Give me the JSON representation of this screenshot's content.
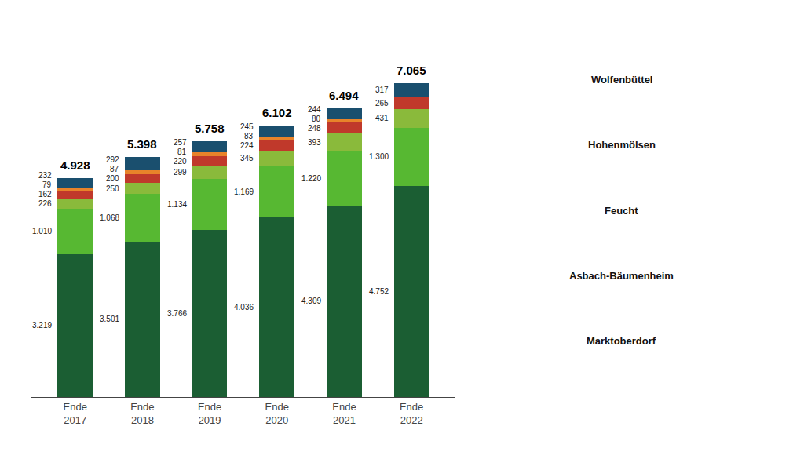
{
  "chart_data": {
    "type": "bar",
    "stacked": true,
    "data_labels": true,
    "grid": false,
    "tick_labels": "x",
    "categories": [
      "Ende\n2017",
      "Ende\n2018",
      "Ende\n2019",
      "Ende\n2020",
      "Ende\n2021",
      "Ende\n2022"
    ],
    "series": [
      {
        "color": "#1b5e33",
        "values": [
          3219,
          3501,
          3766,
          4036,
          4309,
          4752
        ],
        "value_labels": [
          "3.219",
          "3.501",
          "3.766",
          "4.036",
          "4.309",
          "4.752"
        ]
      },
      {
        "color": "#57b832",
        "values": [
          1010,
          1068,
          1134,
          1169,
          1220,
          1300
        ],
        "value_labels": [
          "1.010",
          "1.068",
          "1.134",
          "1.169",
          "1.220",
          "1.300"
        ]
      },
      {
        "color": "#8aba3b",
        "values": [
          226,
          250,
          299,
          345,
          393,
          431
        ],
        "value_labels": [
          "226",
          "250",
          "299",
          "345",
          "393",
          "431"
        ]
      },
      {
        "color": "#c0392b",
        "values": [
          162,
          200,
          220,
          224,
          248,
          265
        ],
        "value_labels": [
          "162",
          "200",
          "220",
          "224",
          "248",
          "265"
        ]
      },
      {
        "color": "#e8832a",
        "values": [
          79,
          87,
          81,
          83,
          80,
          0
        ],
        "value_labels": [
          "79",
          "87",
          "81",
          "83",
          "80",
          null
        ]
      },
      {
        "color": "#1a4f6e",
        "values": [
          232,
          292,
          257,
          245,
          244,
          317
        ],
        "value_labels": [
          "232",
          "292",
          "257",
          "245",
          "244",
          "317"
        ]
      }
    ],
    "totals": {
      "values": [
        4928,
        5398,
        5758,
        6102,
        6494,
        7065
      ],
      "labels": [
        "4.928",
        "5.398",
        "5.758",
        "6.102",
        "6.494",
        "7.065"
      ]
    },
    "ylim": [
      0,
      8400
    ],
    "annotations": [
      "Wolfenbüttel",
      "Hohenmölsen",
      "Feucht",
      "Asbach-Bäumenheim",
      "Marktoberdorf"
    ]
  }
}
